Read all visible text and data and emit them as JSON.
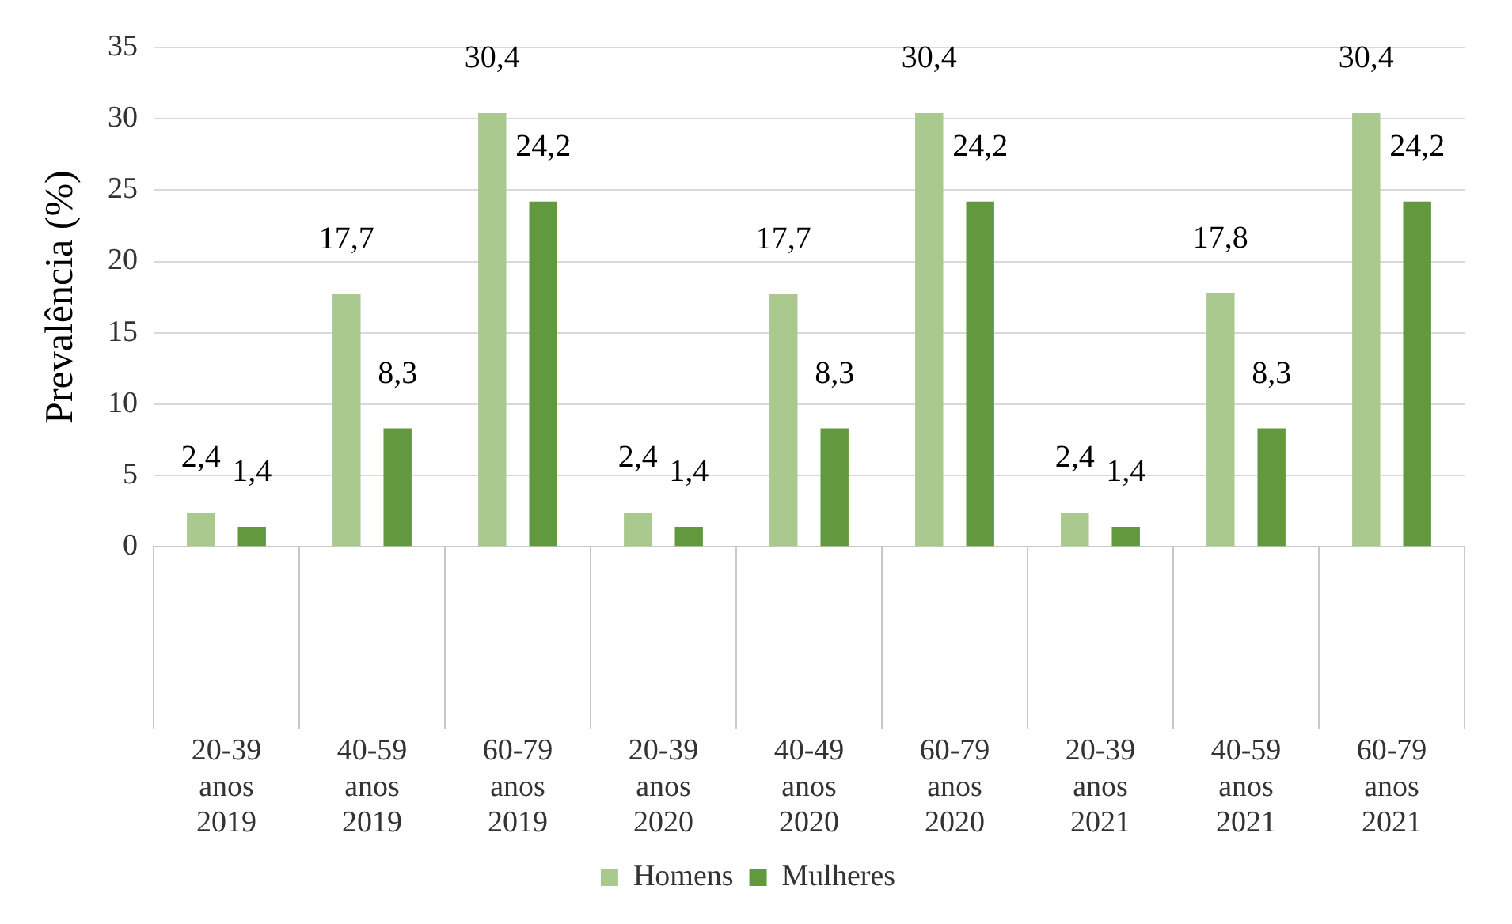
{
  "chart_data": {
    "type": "bar",
    "ylabel": "Prevalência (%)",
    "categories": [
      "20-39 anos 2019",
      "40-59 anos 2019",
      "60-79 anos 2019",
      "20-39 anos 2020",
      "40-49 anos 2020",
      "60-79 anos 2020",
      "20-39 anos 2021",
      "40-59 anos 2021",
      "60-79 anos 2021"
    ],
    "series": [
      {
        "name": "Homens",
        "color": "#a9c98f",
        "values": [
          2.4,
          17.7,
          30.4,
          2.4,
          17.7,
          30.4,
          2.4,
          17.8,
          30.4
        ],
        "value_labels": [
          "2,4",
          "17,7",
          "30,4",
          "2,4",
          "17,7",
          "30,4",
          "2,4",
          "17,8",
          "30,4"
        ]
      },
      {
        "name": "Mulheres",
        "color": "#62993e",
        "values": [
          1.4,
          8.3,
          24.2,
          1.4,
          8.3,
          24.2,
          1.4,
          8.3,
          24.2
        ],
        "value_labels": [
          "1,4",
          "8,3",
          "24,2",
          "1,4",
          "8,3",
          "24,2",
          "1,4",
          "8,3",
          "24,2"
        ]
      }
    ],
    "ylim": [
      0,
      35
    ],
    "yticks": [
      0,
      5,
      10,
      15,
      20,
      25,
      30,
      35
    ],
    "grid": "y",
    "legend": "bottom"
  }
}
